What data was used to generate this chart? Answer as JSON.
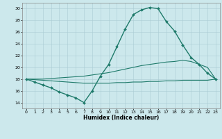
{
  "xlabel": "Humidex (Indice chaleur)",
  "xlim": [
    -0.5,
    23.5
  ],
  "ylim": [
    13.0,
    31.0
  ],
  "yticks": [
    14,
    16,
    18,
    20,
    22,
    24,
    26,
    28,
    30
  ],
  "xticks": [
    0,
    1,
    2,
    3,
    4,
    5,
    6,
    7,
    8,
    9,
    10,
    11,
    12,
    13,
    14,
    15,
    16,
    17,
    18,
    19,
    20,
    21,
    22,
    23
  ],
  "bg_color": "#cce8ec",
  "line_color": "#1e7a6a",
  "grid_color": "#aacdd4",
  "series": [
    {
      "x": [
        0,
        1,
        2,
        3,
        4,
        5,
        6,
        7,
        8,
        9,
        10,
        11,
        12,
        13,
        14,
        15,
        16,
        17,
        18,
        19,
        20,
        21,
        22,
        23
      ],
      "y": [
        18,
        17.5,
        17.0,
        16.5,
        15.8,
        15.3,
        14.8,
        14.0,
        16.0,
        18.5,
        20.5,
        23.5,
        26.5,
        29.0,
        29.8,
        30.2,
        30.0,
        27.8,
        26.2,
        23.8,
        21.7,
        20.5,
        19.0,
        18.0
      ],
      "marker": "D",
      "markersize": 2.0,
      "linewidth": 1.0
    },
    {
      "x": [
        0,
        1,
        2,
        3,
        4,
        5,
        6,
        7,
        8,
        9,
        10,
        11,
        12,
        13,
        14,
        15,
        16,
        17,
        18,
        19,
        20,
        21,
        22,
        23
      ],
      "y": [
        18.0,
        18.0,
        18.0,
        18.1,
        18.2,
        18.3,
        18.4,
        18.5,
        18.7,
        18.9,
        19.1,
        19.4,
        19.7,
        20.0,
        20.3,
        20.5,
        20.7,
        20.9,
        21.0,
        21.2,
        21.0,
        20.5,
        20.0,
        18.0
      ],
      "marker": null,
      "markersize": 0,
      "linewidth": 0.8
    },
    {
      "x": [
        0,
        1,
        2,
        3,
        4,
        5,
        6,
        7,
        8,
        9,
        10,
        11,
        12,
        13,
        14,
        15,
        16,
        17,
        18,
        19,
        20,
        21,
        22,
        23
      ],
      "y": [
        18.0,
        17.9,
        17.8,
        17.7,
        17.6,
        17.5,
        17.4,
        17.3,
        17.3,
        17.3,
        17.3,
        17.4,
        17.4,
        17.5,
        17.5,
        17.6,
        17.6,
        17.7,
        17.7,
        17.8,
        17.8,
        17.8,
        17.8,
        18.0
      ],
      "marker": null,
      "markersize": 0,
      "linewidth": 0.8
    }
  ]
}
